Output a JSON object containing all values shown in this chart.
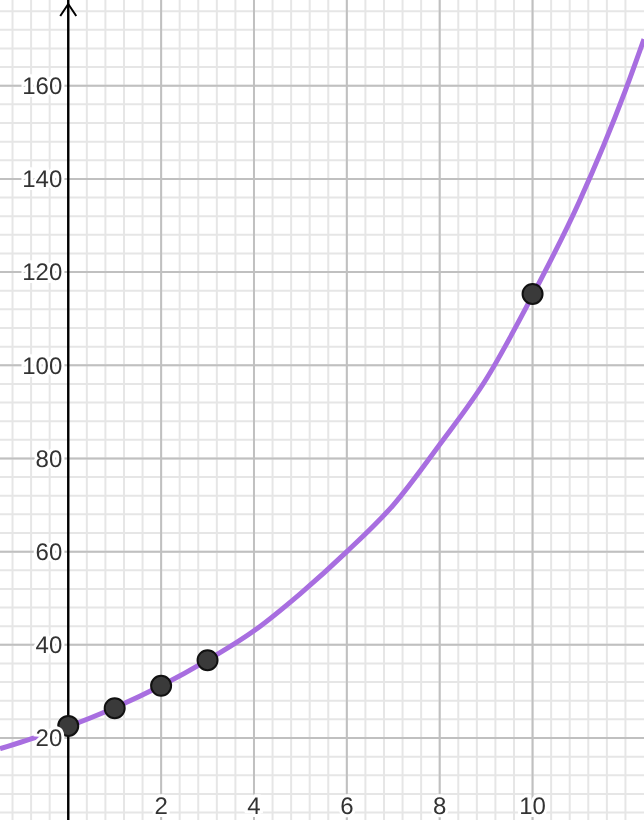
{
  "chart_data": {
    "type": "line",
    "xlim": [
      -1.47,
      12.4
    ],
    "ylim": [
      2.4,
      178.4
    ],
    "xticks": [
      2,
      4,
      6,
      8,
      10
    ],
    "yticks": [
      20,
      40,
      60,
      80,
      100,
      120,
      140,
      160
    ],
    "grid": true,
    "series": [
      {
        "color": "#a86ee0",
        "marker": "none",
        "x": [
          -1.47,
          -0.5,
          0,
          1,
          2,
          3,
          4,
          5,
          6,
          7,
          8,
          9,
          10,
          11,
          12,
          12.4
        ],
        "values": [
          17.7,
          20.8,
          22.5,
          26.5,
          31.2,
          36.7,
          43,
          51,
          60,
          70,
          83,
          97,
          115,
          135,
          159,
          170
        ]
      },
      {
        "type": "scatter",
        "color": "#3a3a3a",
        "marker": "circle",
        "x": [
          0,
          1,
          2,
          3,
          10
        ],
        "values": [
          22.6,
          26.4,
          31.2,
          36.7,
          115.3
        ]
      }
    ]
  }
}
